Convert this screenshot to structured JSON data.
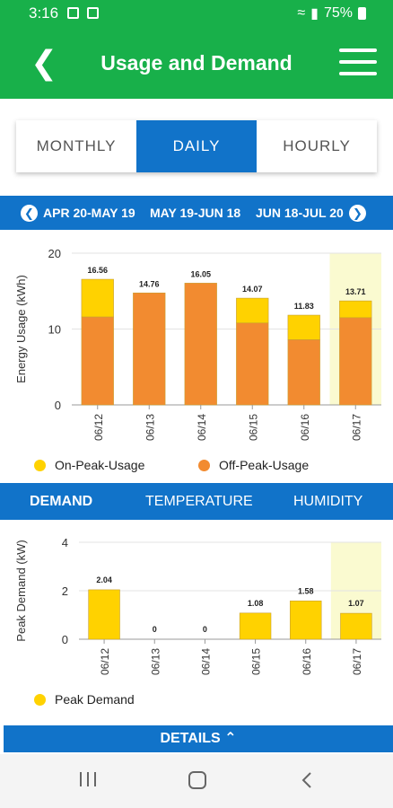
{
  "status": {
    "time": "3:16",
    "battery": "75%"
  },
  "header": {
    "title": "Usage and Demand"
  },
  "tabs": [
    {
      "label": "MONTHLY",
      "active": false
    },
    {
      "label": "DAILY",
      "active": true
    },
    {
      "label": "HOURLY",
      "active": false
    }
  ],
  "periods": [
    "APR 20-MAY 19",
    "MAY 19-JUN 18",
    "JUN 18-JUL 20"
  ],
  "usage_legend": {
    "on_peak": "On-Peak-Usage",
    "off_peak": "Off-Peak-Usage"
  },
  "subtabs": [
    "DEMAND",
    "TEMPERATURE",
    "HUMIDITY"
  ],
  "demand_legend": "Peak Demand",
  "details_label": "DETAILS",
  "colors": {
    "green": "#18b04a",
    "blue": "#1173c9",
    "on_peak": "#ffd200",
    "off_peak": "#f28b30",
    "highlight": "#fafad0"
  },
  "chart_data": [
    {
      "type": "bar",
      "stacked": true,
      "categories": [
        "06/12",
        "06/13",
        "06/14",
        "06/15",
        "06/16",
        "06/17"
      ],
      "ylabel": "Energy Usage (kWh)",
      "ylim": [
        0,
        20
      ],
      "yticks": [
        "0",
        "10",
        "20"
      ],
      "totals": [
        "16.56",
        "14.76",
        "16.05",
        "14.07",
        "11.83",
        "13.71"
      ],
      "series": [
        {
          "name": "Off-Peak-Usage",
          "values": [
            11.6,
            14.76,
            16.05,
            10.8,
            8.6,
            11.5
          ]
        },
        {
          "name": "On-Peak-Usage",
          "values": [
            4.96,
            0,
            0,
            3.27,
            3.23,
            2.21
          ]
        }
      ],
      "highlight_category": "06/17"
    },
    {
      "type": "bar",
      "categories": [
        "06/12",
        "06/13",
        "06/14",
        "06/15",
        "06/16",
        "06/17"
      ],
      "ylabel": "Peak Demand (kW)",
      "ylim": [
        0,
        4
      ],
      "yticks": [
        "0",
        "2",
        "4"
      ],
      "values": [
        2.04,
        0,
        0,
        1.08,
        1.58,
        1.07
      ],
      "labels": [
        "2.04",
        "0",
        "0",
        "1.08",
        "1.58",
        "1.07"
      ],
      "highlight_category": "06/17"
    }
  ]
}
